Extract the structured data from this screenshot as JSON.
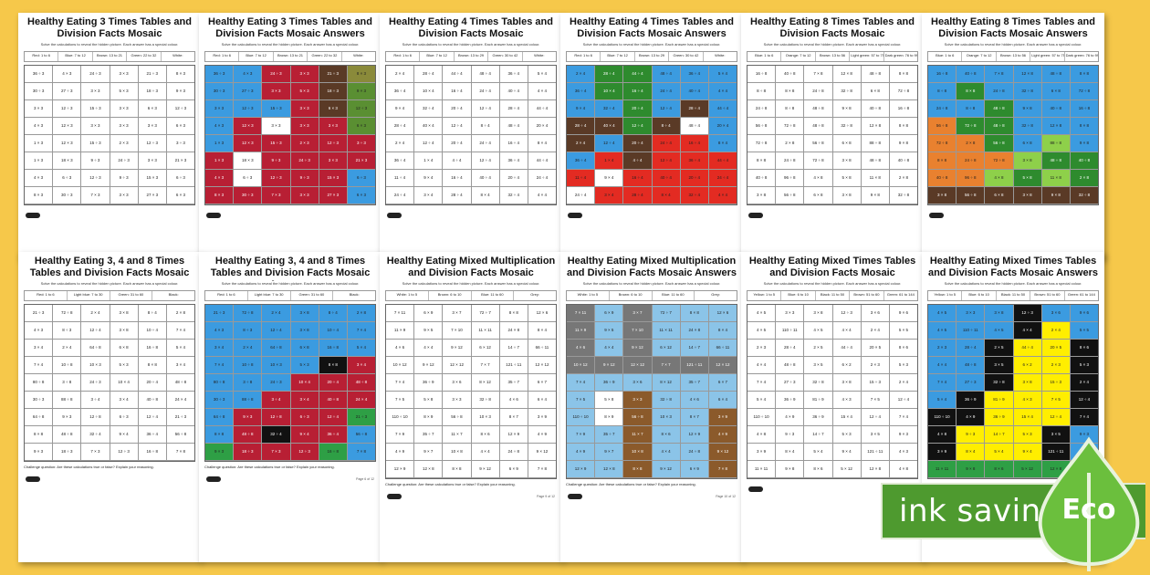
{
  "sheets": [
    {
      "title": "Healthy Eating 3 Times Tables and Division Facts Mosaic",
      "key": [
        "Red: 1 to 6",
        "Blue: 7 to 12",
        "Brown: 13 to 21",
        "Green: 22 to 32",
        "White: "
      ],
      "instruction": "Solve the calculations to reveal the hidden picture. Each answer has a special colour.",
      "challenge": "",
      "page": ""
    },
    {
      "title": "Healthy Eating 3 Times Tables and Division Facts Mosaic Answers",
      "key": [
        "Red: 1 to 6",
        "Blue: 7 to 12",
        "Brown: 13 to 21",
        "Green: 22 to 32",
        "White: "
      ],
      "instruction": "Solve the calculations to reveal the hidden picture. Each answer has a special colour.",
      "challenge": "",
      "page": ""
    },
    {
      "title": "Healthy Eating 4 Times Tables and Division Facts Mosaic",
      "key": [
        "Red: 1 to 6",
        "Blue: 7 to 12",
        "Brown: 13 to 29",
        "Green: 30 to 42",
        "White: "
      ],
      "instruction": "Solve the calculations to reveal the hidden picture. Each answer has a special colour.",
      "challenge": "",
      "page": ""
    },
    {
      "title": "Healthy Eating 4 Times Tables and Division Facts Mosaic Answers",
      "key": [
        "Red: 1 to 6",
        "Blue: 7 to 12",
        "Brown: 13 to 29",
        "Green: 30 to 42",
        "White: "
      ],
      "instruction": "Solve the calculations to reveal the hidden picture. Each answer has a special colour.",
      "challenge": "",
      "page": ""
    },
    {
      "title": "Healthy Eating 8 Times Tables and Division Facts Mosaic",
      "key": [
        "Blue: 1 to 6",
        "Orange: 7 to 12",
        "Brown: 13 to 56",
        "Light green: 57 to 75",
        "Dark green: 76 to 99"
      ],
      "instruction": "Solve the calculations to reveal the hidden picture. Each answer has a special colour.",
      "challenge": "",
      "page": ""
    },
    {
      "title": "Healthy Eating 8 Times Tables and Division Facts Mosaic Answers",
      "key": [
        "Blue: 1 to 6",
        "Orange: 7 to 12",
        "Brown: 13 to 56",
        "Light green: 57 to 75",
        "Dark green: 76 to 99"
      ],
      "instruction": "Solve the calculations to reveal the hidden picture. Each answer has a special colour.",
      "challenge": "",
      "page": ""
    },
    {
      "title": "Healthy Eating 3, 4 and 8 Times Tables and Division Facts Mosaic",
      "key": [
        "Red: 1 to 6",
        "Light blue: 7 to 30",
        "Green: 31 to 60",
        "Black: "
      ],
      "instruction": "Solve the calculations to reveal the hidden picture. Each answer has a special colour.",
      "challenge": "Challenge question: Are these calculations true or false? Explain your reasoning.",
      "page": ""
    },
    {
      "title": "Healthy Eating 3, 4 and 8 Times Tables and Division Facts Mosaic Answers",
      "key": [
        "Red: 1 to 6",
        "Light blue: 7 to 30",
        "Green: 31 to 60",
        "Black: "
      ],
      "instruction": "Solve the calculations to reveal the hidden picture. Each answer has a special colour.",
      "challenge": "Challenge question: Are these calculations true or false? Explain your reasoning.",
      "page": "Page 6 of 12"
    },
    {
      "title": "Healthy Eating Mixed Multiplication and Division Facts Mosaic",
      "key": [
        "White: 1 to 5",
        "Brown: 6 to 10",
        "Blue: 11 to 60",
        "Grey: "
      ],
      "instruction": "Solve the calculations to reveal the hidden picture. Each answer has a special colour.",
      "challenge": "Challenge question: Are these calculations true or false? Explain your reasoning.",
      "page": "Page 9 of 12"
    },
    {
      "title": "Healthy Eating Mixed Multiplication and Division Facts Mosaic Answers",
      "key": [
        "White: 1 to 5",
        "Brown: 6 to 10",
        "Blue: 11 to 60",
        "Grey: "
      ],
      "instruction": "Solve the calculations to reveal the hidden picture. Each answer has a special colour.",
      "challenge": "Challenge question: Are these calculations true or false? Explain your reasoning.",
      "page": "Page 10 of 12"
    },
    {
      "title": "Healthy Eating Mixed Times Tables and Division Facts Mosaic",
      "key": [
        "Yellow: 1 to 5",
        "Blue: 6 to 10",
        "Black: 11 to 50",
        "Brown: 51 to 60",
        "Green: 61 to 144"
      ],
      "instruction": "Solve the calculations to reveal the hidden picture. Each answer has a special colour.",
      "challenge": "",
      "page": "Page 11 of 12"
    },
    {
      "title": "Healthy Eating Mixed Times Tables and Division Facts Mosaic Answers",
      "key": [
        "Yellow: 1 to 5",
        "Blue: 6 to 10",
        "Black: 11 to 50",
        "Brown: 51 to 60",
        "Green: 61 to 144"
      ],
      "instruction": "Solve the calculations to reveal the hidden picture. Each answer has a special colour.",
      "challenge": "",
      "page": ""
    }
  ],
  "grids": {
    "g3": [
      [
        "36 ÷ 3",
        "4 × 3",
        "24 ÷ 3",
        "3 × 3",
        "21 ÷ 3",
        "8 × 3"
      ],
      [
        "30 ÷ 3",
        "27 ÷ 3",
        "3 × 3",
        "5 × 3",
        "18 ÷ 3",
        "9 × 3"
      ],
      [
        "3 × 3",
        "12 ÷ 3",
        "15 ÷ 3",
        "3 × 3",
        "6 × 3",
        "12 ÷ 3"
      ],
      [
        "4 × 3",
        "12 × 3",
        "3 × 3",
        "3 × 3",
        "3 × 3",
        "6 × 3"
      ],
      [
        "1 × 3",
        "12 × 3",
        "15 ÷ 3",
        "2 × 3",
        "12 ÷ 3",
        "3 ÷ 3"
      ],
      [
        "1 × 3",
        "18 × 3",
        "9 ÷ 3",
        "24 ÷ 3",
        "3 × 3",
        "21 × 3"
      ],
      [
        "4 × 3",
        "6 ÷ 3",
        "12 ÷ 3",
        "9 ÷ 3",
        "15 × 3",
        "6 ÷ 3"
      ],
      [
        "8 × 3",
        "30 ÷ 3",
        "7 × 3",
        "3 × 3",
        "27 × 3",
        "6 × 3"
      ]
    ],
    "g4": [
      [
        "2 × 4",
        "28 ÷ 4",
        "44 ÷ 4",
        "48 ÷ 4",
        "36 ÷ 4",
        "5 × 4"
      ],
      [
        "36 ÷ 4",
        "10 × 4",
        "16 ÷ 4",
        "24 ÷ 4",
        "40 ÷ 4",
        "4 × 4"
      ],
      [
        "9 × 4",
        "32 ÷ 4",
        "20 ÷ 4",
        "12 ÷ 4",
        "28 ÷ 4",
        "44 ÷ 4"
      ],
      [
        "28 ÷ 4",
        "40 × 4",
        "12 ÷ 4",
        "8 ÷ 4",
        "48 ÷ 4",
        "20 × 4"
      ],
      [
        "2 × 4",
        "12 ÷ 4",
        "20 ÷ 4",
        "24 ÷ 4",
        "16 ÷ 4",
        "8 × 4"
      ],
      [
        "36 ÷ 4",
        "1 × 4",
        "4 ÷ 4",
        "12 ÷ 4",
        "36 ÷ 4",
        "44 ÷ 4"
      ],
      [
        "11 ÷ 4",
        "9 × 4",
        "16 ÷ 4",
        "40 ÷ 4",
        "20 ÷ 4",
        "24 ÷ 4"
      ],
      [
        "24 ÷ 4",
        "3 × 4",
        "28 ÷ 4",
        "8 × 4",
        "32 ÷ 4",
        "4 × 4"
      ]
    ],
    "g8": [
      [
        "16 ÷ 8",
        "40 ÷ 8",
        "7 × 8",
        "12 × 8",
        "48 ÷ 8",
        "8 × 8"
      ],
      [
        "8 ÷ 8",
        "8 × 8",
        "24 ÷ 8",
        "32 ÷ 8",
        "6 × 8",
        "72 ÷ 8"
      ],
      [
        "24 ÷ 8",
        "8 ÷ 8",
        "48 ÷ 8",
        "9 × 8",
        "40 ÷ 8",
        "16 ÷ 8"
      ],
      [
        "56 ÷ 8",
        "72 ÷ 8",
        "48 ÷ 8",
        "32 ÷ 8",
        "12 × 8",
        "8 × 8"
      ],
      [
        "72 ÷ 8",
        "2 × 8",
        "56 ÷ 8",
        "6 × 8",
        "88 ÷ 8",
        "9 × 8"
      ],
      [
        "8 × 8",
        "24 ÷ 8",
        "72 ÷ 8",
        "3 × 8",
        "48 ÷ 8",
        "40 ÷ 8"
      ],
      [
        "40 ÷ 8",
        "96 ÷ 8",
        "4 × 8",
        "5 × 8",
        "11 × 8",
        "2 × 8"
      ],
      [
        "3 × 8",
        "56 ÷ 8",
        "6 × 8",
        "3 × 8",
        "9 × 8",
        "32 ÷ 8"
      ]
    ],
    "g348": [
      [
        "21 ÷ 3",
        "72 ÷ 8",
        "2 × 4",
        "3 × 8",
        "8 ÷ 4",
        "2 × 8"
      ],
      [
        "4 × 3",
        "8 ÷ 3",
        "12 ÷ 4",
        "3 × 8",
        "10 ÷ 4",
        "7 × 4"
      ],
      [
        "3 × 4",
        "2 × 4",
        "64 ÷ 8",
        "6 × 8",
        "16 ÷ 8",
        "5 × 4"
      ],
      [
        "7 × 4",
        "10 ÷ 8",
        "10 × 3",
        "5 × 3",
        "8 × 8",
        "3 × 4"
      ],
      [
        "80 ÷ 8",
        "3 ÷ 8",
        "24 ÷ 3",
        "10 × 4",
        "20 ÷ 4",
        "48 ÷ 8"
      ],
      [
        "30 ÷ 3",
        "88 ÷ 8",
        "3 ÷ 4",
        "3 × 4",
        "40 ÷ 8",
        "24 × 4"
      ],
      [
        "64 ÷ 8",
        "9 × 3",
        "12 ÷ 8",
        "6 ÷ 3",
        "12 ÷ 4",
        "21 ÷ 3"
      ],
      [
        "8 × 8",
        "48 ÷ 8",
        "32 ÷ 4",
        "9 × 4",
        "36 ÷ 4",
        "56 ÷ 8"
      ],
      [
        "9 × 3",
        "18 ÷ 3",
        "7 × 3",
        "12 ÷ 3",
        "16 ÷ 8",
        "7 × 8"
      ]
    ],
    "gmix": [
      [
        "7 × 11",
        "6 × 9",
        "3 × 7",
        "72 ÷ 7",
        "8 × 8",
        "12 × 6"
      ],
      [
        "11 × 9",
        "9 × 5",
        "7 × 10",
        "11 × 11",
        "24 × 8",
        "8 × 4"
      ],
      [
        "4 × 6",
        "4 × 4",
        "9 × 12",
        "6 × 12",
        "14 ÷ 7",
        "66 ÷ 11"
      ],
      [
        "10 × 12",
        "9 × 12",
        "12 × 12",
        "7 × 7",
        "121 ÷ 11",
        "12 × 12"
      ],
      [
        "7 × 4",
        "36 ÷ 9",
        "3 × 6",
        "8 × 12",
        "35 ÷ 7",
        "6 × 7"
      ],
      [
        "7 × 5",
        "5 × 8",
        "3 × 3",
        "32 ÷ 8",
        "4 × 6",
        "6 × 4"
      ],
      [
        "110 ÷ 10",
        "8 × 9",
        "56 ÷ 8",
        "10 × 3",
        "8 × 7",
        "3 × 9"
      ],
      [
        "7 × 9",
        "35 ÷ 7",
        "11 × 7",
        "8 × 6",
        "12 × 9",
        "4 × 9"
      ],
      [
        "4 × 9",
        "9 × 7",
        "10 × 8",
        "4 × 4",
        "24 ÷ 8",
        "9 × 12"
      ],
      [
        "12 × 9",
        "12 × 8",
        "8 × 8",
        "9 × 12",
        "6 × 9",
        "7 × 8"
      ]
    ],
    "gmt": [
      [
        "4 × 5",
        "3 × 3",
        "3 × 8",
        "12 ÷ 3",
        "3 × 6",
        "9 × 6"
      ],
      [
        "4 × 5",
        "110 ÷ 11",
        "4 × 5",
        "4 × 4",
        "2 × 4",
        "5 × 5"
      ],
      [
        "2 × 3",
        "28 ÷ 4",
        "2 × 5",
        "44 ÷ 4",
        "20 × 5",
        "8 × 6"
      ],
      [
        "4 × 4",
        "48 ÷ 8",
        "3 × 5",
        "6 × 2",
        "2 × 3",
        "5 × 3"
      ],
      [
        "7 × 4",
        "27 ÷ 3",
        "32 ÷ 8",
        "3 × 8",
        "15 ÷ 3",
        "2 × 4"
      ],
      [
        "5 × 4",
        "36 ÷ 9",
        "81 ÷ 9",
        "4 × 3",
        "7 × 5",
        "12 ÷ 4"
      ],
      [
        "110 ÷ 10",
        "4 × 9",
        "36 ÷ 9",
        "15 × 4",
        "12 ÷ 4",
        "7 × 4"
      ],
      [
        "4 × 8",
        "9 ÷ 3",
        "14 ÷ 7",
        "5 × 3",
        "3 × 5",
        "9 × 3"
      ],
      [
        "3 × 9",
        "8 × 4",
        "5 × 4",
        "9 × 4",
        "121 ÷ 11",
        "4 × 3"
      ],
      [
        "11 × 11",
        "9 × 8",
        "8 × 6",
        "5 × 12",
        "12 × 8",
        "4 × 8"
      ]
    ]
  },
  "mosaics": {
    "m3": [
      [
        "#3b9be0",
        "#3b9be0",
        "#b81f34",
        "#b81f34",
        "#5a3a26",
        "#8a8a3a"
      ],
      [
        "#3b9be0",
        "#3b9be0",
        "#b81f34",
        "#b81f34",
        "#5a3a26",
        "#5a8f32"
      ],
      [
        "#3b9be0",
        "#3b9be0",
        "#3b9be0",
        "#b81f34",
        "#5a3a26",
        "#5a8f32"
      ],
      [
        "#3b9be0",
        "#b81f34",
        "#ffffff",
        "#b81f34",
        "#b81f34",
        "#5a8f32"
      ],
      [
        "#3b9be0",
        "#b81f34",
        "#b81f34",
        "#b81f34",
        "#b81f34",
        "#b81f34"
      ],
      [
        "#b81f34",
        "#ffffff",
        "#b81f34",
        "#b81f34",
        "#b81f34",
        "#b81f34"
      ],
      [
        "#b81f34",
        "#ffffff",
        "#b81f34",
        "#b81f34",
        "#b81f34",
        "#3b9be0"
      ],
      [
        "#b81f34",
        "#b81f34",
        "#b81f34",
        "#b81f34",
        "#b81f34",
        "#3b9be0"
      ]
    ],
    "m4": [
      [
        "#3b9be0",
        "#2e8b2e",
        "#2e8b2e",
        "#3b9be0",
        "#3b9be0",
        "#3b9be0"
      ],
      [
        "#3b9be0",
        "#2e8b2e",
        "#2e8b2e",
        "#3b9be0",
        "#3b9be0",
        "#3b9be0"
      ],
      [
        "#3b9be0",
        "#3b9be0",
        "#2e8b2e",
        "#3b9be0",
        "#5a3a26",
        "#3b9be0"
      ],
      [
        "#5a3a26",
        "#5a3a26",
        "#2e8b2e",
        "#5a3a26",
        "#ffffff",
        "#3b9be0"
      ],
      [
        "#5a3a26",
        "#3b9be0",
        "#5a3a26",
        "#e32b22",
        "#e32b22",
        "#3b9be0"
      ],
      [
        "#3b9be0",
        "#e32b22",
        "#5a3a26",
        "#e32b22",
        "#e32b22",
        "#e32b22"
      ],
      [
        "#e32b22",
        "#ffffff",
        "#e32b22",
        "#e32b22",
        "#e32b22",
        "#e32b22"
      ],
      [
        "#ffffff",
        "#e32b22",
        "#e32b22",
        "#e32b22",
        "#e32b22",
        "#e32b22"
      ]
    ],
    "m8": [
      [
        "#3b9be0",
        "#3b9be0",
        "#3b9be0",
        "#3b9be0",
        "#3b9be0",
        "#3b9be0"
      ],
      [
        "#3b9be0",
        "#2e8b2e",
        "#3b9be0",
        "#3b9be0",
        "#3b9be0",
        "#3b9be0"
      ],
      [
        "#3b9be0",
        "#3b9be0",
        "#2e8b2e",
        "#3b9be0",
        "#3b9be0",
        "#3b9be0"
      ],
      [
        "#e9812f",
        "#2e8b2e",
        "#2e8b2e",
        "#3b9be0",
        "#3b9be0",
        "#3b9be0"
      ],
      [
        "#e9812f",
        "#e9812f",
        "#2e8b2e",
        "#3b9be0",
        "#8ed04a",
        "#3b9be0"
      ],
      [
        "#e9812f",
        "#e9812f",
        "#e9812f",
        "#8ed04a",
        "#2e8b2e",
        "#2e8b2e"
      ],
      [
        "#e9812f",
        "#e9812f",
        "#8ed04a",
        "#2e8b2e",
        "#8ed04a",
        "#2e8b2e"
      ],
      [
        "#5a3a26",
        "#5a3a26",
        "#5a3a26",
        "#5a3a26",
        "#5a3a26",
        "#5a3a26"
      ]
    ],
    "m348": [
      [
        "#3b9be0",
        "#3b9be0",
        "#3b9be0",
        "#3b9be0",
        "#3b9be0",
        "#3b9be0"
      ],
      [
        "#3b9be0",
        "#3b9be0",
        "#3b9be0",
        "#3b9be0",
        "#3b9be0",
        "#3b9be0"
      ],
      [
        "#3b9be0",
        "#3b9be0",
        "#3b9be0",
        "#3b9be0",
        "#3b9be0",
        "#3b9be0"
      ],
      [
        "#3b9be0",
        "#3b9be0",
        "#3b9be0",
        "#3b9be0",
        "#111111",
        "#b81f34"
      ],
      [
        "#3b9be0",
        "#3b9be0",
        "#3b9be0",
        "#b81f34",
        "#b81f34",
        "#b81f34"
      ],
      [
        "#3b9be0",
        "#3b9be0",
        "#b81f34",
        "#b81f34",
        "#b81f34",
        "#b81f34"
      ],
      [
        "#3b9be0",
        "#b81f34",
        "#b81f34",
        "#b81f34",
        "#b81f34",
        "#2e9f45"
      ],
      [
        "#3b9be0",
        "#b81f34",
        "#111111",
        "#b81f34",
        "#b81f34",
        "#3b9be0"
      ],
      [
        "#2e9f45",
        "#b81f34",
        "#b81f34",
        "#b81f34",
        "#2e9f45",
        "#3b9be0"
      ]
    ],
    "mmix": [
      [
        "#777777",
        "#8bc4e8",
        "#777777",
        "#8bc4e8",
        "#8bc4e8",
        "#8bc4e8"
      ],
      [
        "#777777",
        "#8bc4e8",
        "#777777",
        "#8bc4e8",
        "#8bc4e8",
        "#8bc4e8"
      ],
      [
        "#777777",
        "#8bc4e8",
        "#777777",
        "#8bc4e8",
        "#8bc4e8",
        "#8bc4e8"
      ],
      [
        "#777777",
        "#777777",
        "#777777",
        "#777777",
        "#777777",
        "#777777"
      ],
      [
        "#8bc4e8",
        "#8bc4e8",
        "#8bc4e8",
        "#8bc4e8",
        "#8bc4e8",
        "#8bc4e8"
      ],
      [
        "#8bc4e8",
        "#ffffff",
        "#8b5a2b",
        "#8bc4e8",
        "#8bc4e8",
        "#8bc4e8"
      ],
      [
        "#8bc4e8",
        "#ffffff",
        "#8b5a2b",
        "#8bc4e8",
        "#8bc4e8",
        "#8b5a2b"
      ],
      [
        "#8bc4e8",
        "#8bc4e8",
        "#8b5a2b",
        "#8bc4e8",
        "#8bc4e8",
        "#8b5a2b"
      ],
      [
        "#8bc4e8",
        "#8bc4e8",
        "#8b5a2b",
        "#8bc4e8",
        "#8bc4e8",
        "#8b5a2b"
      ],
      [
        "#8bc4e8",
        "#8bc4e8",
        "#8b5a2b",
        "#8bc4e8",
        "#8bc4e8",
        "#8b5a2b"
      ]
    ],
    "mmt": [
      [
        "#3b9be0",
        "#3b9be0",
        "#3b9be0",
        "#111111",
        "#3b9be0",
        "#3b9be0"
      ],
      [
        "#3b9be0",
        "#3b9be0",
        "#3b9be0",
        "#111111",
        "#ffee00",
        "#3b9be0"
      ],
      [
        "#3b9be0",
        "#3b9be0",
        "#111111",
        "#ffee00",
        "#ffee00",
        "#111111"
      ],
      [
        "#3b9be0",
        "#3b9be0",
        "#111111",
        "#ffee00",
        "#ffee00",
        "#111111"
      ],
      [
        "#3b9be0",
        "#3b9be0",
        "#111111",
        "#ffee00",
        "#ffee00",
        "#111111"
      ],
      [
        "#3b9be0",
        "#111111",
        "#ffee00",
        "#ffee00",
        "#ffee00",
        "#111111"
      ],
      [
        "#111111",
        "#111111",
        "#ffee00",
        "#ffee00",
        "#ffee00",
        "#111111"
      ],
      [
        "#111111",
        "#ffee00",
        "#ffee00",
        "#ffee00",
        "#111111",
        "#3b9be0"
      ],
      [
        "#111111",
        "#ffee00",
        "#ffee00",
        "#ffee00",
        "#111111",
        "#3b9be0"
      ],
      [
        "#2e9f45",
        "#2e9f45",
        "#2e9f45",
        "#2e9f45",
        "#2e9f45",
        "#2e9f45"
      ]
    ]
  },
  "eco": {
    "banner_text": "ink saving",
    "leaf_text": "Eco",
    "banner_color": "#4e9a2f",
    "leaf_color": "#6bbf3d"
  }
}
